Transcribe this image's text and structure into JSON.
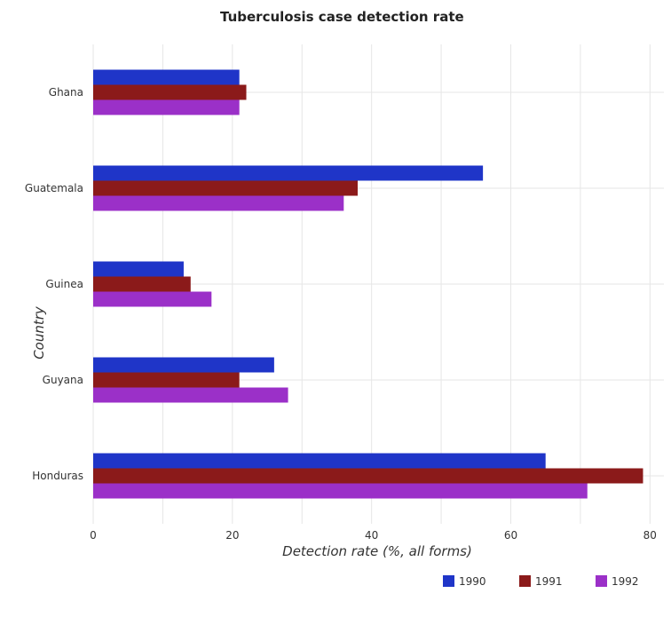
{
  "chart_data": {
    "type": "bar",
    "orientation": "horizontal",
    "title": "Tuberculosis case detection rate",
    "xlabel": "Detection rate (%, all forms)",
    "ylabel": "Country",
    "categories": [
      "Ghana",
      "Guatemala",
      "Guinea",
      "Guyana",
      "Honduras"
    ],
    "series": [
      {
        "name": "1990",
        "color": "#1f35c8",
        "values": [
          21,
          56,
          13,
          26,
          65
        ]
      },
      {
        "name": "1991",
        "color": "#8b1a1a",
        "values": [
          22,
          38,
          14,
          21,
          79
        ]
      },
      {
        "name": "1992",
        "color": "#9b30c8",
        "values": [
          21,
          36,
          17,
          28,
          71
        ]
      }
    ],
    "xlim": [
      0,
      82
    ],
    "xticks": [
      0,
      20,
      40,
      60,
      80
    ],
    "grid": true,
    "legend_position": "bottom-right"
  }
}
